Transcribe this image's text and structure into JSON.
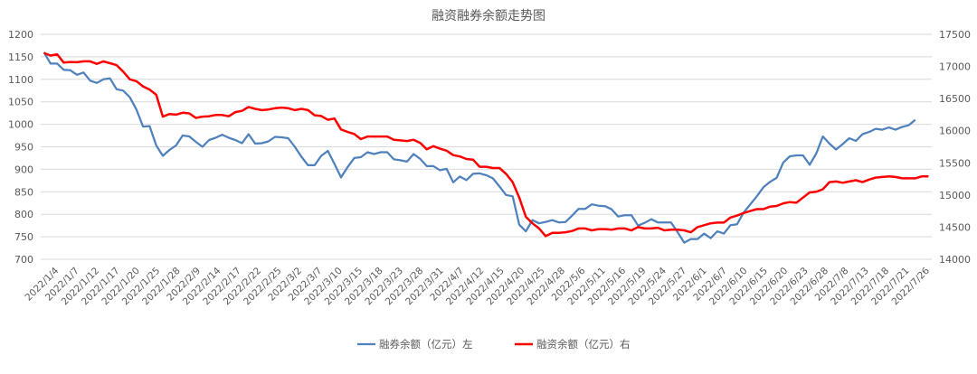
{
  "chart_data": {
    "type": "line",
    "title": "融资融券余额走势图",
    "xlabel": "",
    "ylabel_left": "",
    "ylabel_right": "",
    "ylim_left": [
      700,
      1200
    ],
    "yticks_left": [
      "700",
      "750",
      "800",
      "850",
      "900",
      "950",
      "1000",
      "1050",
      "1100",
      "1150",
      "1200"
    ],
    "ylim_right": [
      14000,
      17500
    ],
    "yticks_right": [
      "14000",
      "14500",
      "15000",
      "15500",
      "16000",
      "16500",
      "17000",
      "17500"
    ],
    "grid": true,
    "legend_position": "bottom",
    "x_tick_labels": [
      "2022/1/4",
      "2022/1/7",
      "2022/1/12",
      "2022/1/17",
      "2022/1/20",
      "2022/1/25",
      "2022/1/28",
      "2022/2/9",
      "2022/2/14",
      "2022/2/17",
      "2022/2/22",
      "2022/2/25",
      "2022/3/2",
      "2022/3/7",
      "2022/3/10",
      "2022/3/15",
      "2022/3/18",
      "2022/3/23",
      "2022/3/28",
      "2022/3/31",
      "2022/4/7",
      "2022/4/12",
      "2022/4/15",
      "2022/4/20",
      "2022/4/25",
      "2022/4/28",
      "2022/5/6",
      "2022/5/11",
      "2022/5/16",
      "2022/5/19",
      "2022/5/24",
      "2022/5/27",
      "2022/6/1",
      "2022/6/7",
      "2022/6/10",
      "2022/6/15",
      "2022/6/20",
      "2022/6/23",
      "2022/6/28",
      "2022/7/8",
      "2022/7/13",
      "2022/7/18",
      "2022/7/21",
      "2022/7/26"
    ],
    "series": [
      {
        "name": "融券余额（亿元）左",
        "axis": "left",
        "color": "#4F81BD",
        "values": [
          1160,
          1135,
          1135,
          1121,
          1120,
          1110,
          1115,
          1097,
          1092,
          1100,
          1102,
          1078,
          1075,
          1060,
          1033,
          995,
          996,
          953,
          930,
          943,
          953,
          975,
          973,
          961,
          950,
          965,
          970,
          977,
          970,
          965,
          958,
          978,
          957,
          958,
          962,
          972,
          971,
          969,
          950,
          928,
          909,
          909,
          930,
          941,
          912,
          882,
          905,
          925,
          927,
          938,
          934,
          938,
          938,
          922,
          920,
          917,
          934,
          923,
          907,
          907,
          898,
          901,
          871,
          884,
          876,
          890,
          891,
          887,
          880,
          862,
          843,
          840,
          777,
          762,
          787,
          780,
          783,
          787,
          782,
          783,
          797,
          812,
          812,
          822,
          819,
          818,
          811,
          795,
          798,
          798,
          775,
          781,
          789,
          782,
          782,
          782,
          760,
          737,
          745,
          745,
          757,
          747,
          762,
          757,
          776,
          778,
          804,
          822,
          840,
          860,
          872,
          881,
          915,
          929,
          931,
          931,
          910,
          935,
          973,
          957,
          944,
          956,
          969,
          963,
          978,
          983,
          990,
          988,
          993,
          988,
          994,
          998,
          1010
        ]
      },
      {
        "name": "融资余额（亿元）右",
        "axis": "right",
        "color": "#FF0000",
        "values": [
          17210,
          17170,
          17190,
          17060,
          17070,
          17065,
          17080,
          17080,
          17040,
          17080,
          17050,
          17020,
          16920,
          16800,
          16770,
          16690,
          16640,
          16560,
          16220,
          16260,
          16250,
          16280,
          16270,
          16200,
          16220,
          16225,
          16245,
          16245,
          16225,
          16290,
          16310,
          16370,
          16340,
          16320,
          16330,
          16350,
          16360,
          16350,
          16320,
          16340,
          16320,
          16240,
          16230,
          16170,
          16190,
          16020,
          15980,
          15950,
          15870,
          15910,
          15910,
          15910,
          15910,
          15860,
          15850,
          15840,
          15860,
          15810,
          15710,
          15760,
          15720,
          15690,
          15620,
          15600,
          15560,
          15550,
          15440,
          15440,
          15420,
          15420,
          15330,
          15200,
          14960,
          14660,
          14560,
          14480,
          14360,
          14410,
          14410,
          14420,
          14440,
          14480,
          14480,
          14450,
          14470,
          14470,
          14460,
          14480,
          14480,
          14450,
          14500,
          14480,
          14480,
          14490,
          14450,
          14460,
          14460,
          14450,
          14420,
          14500,
          14530,
          14560,
          14570,
          14570,
          14650,
          14680,
          14720,
          14750,
          14780,
          14780,
          14820,
          14830,
          14870,
          14890,
          14880,
          14960,
          15040,
          15050,
          15090,
          15200,
          15210,
          15190,
          15210,
          15230,
          15200,
          15240,
          15270,
          15280,
          15290,
          15280,
          15260,
          15260,
          15260,
          15290,
          15290
        ]
      }
    ]
  }
}
